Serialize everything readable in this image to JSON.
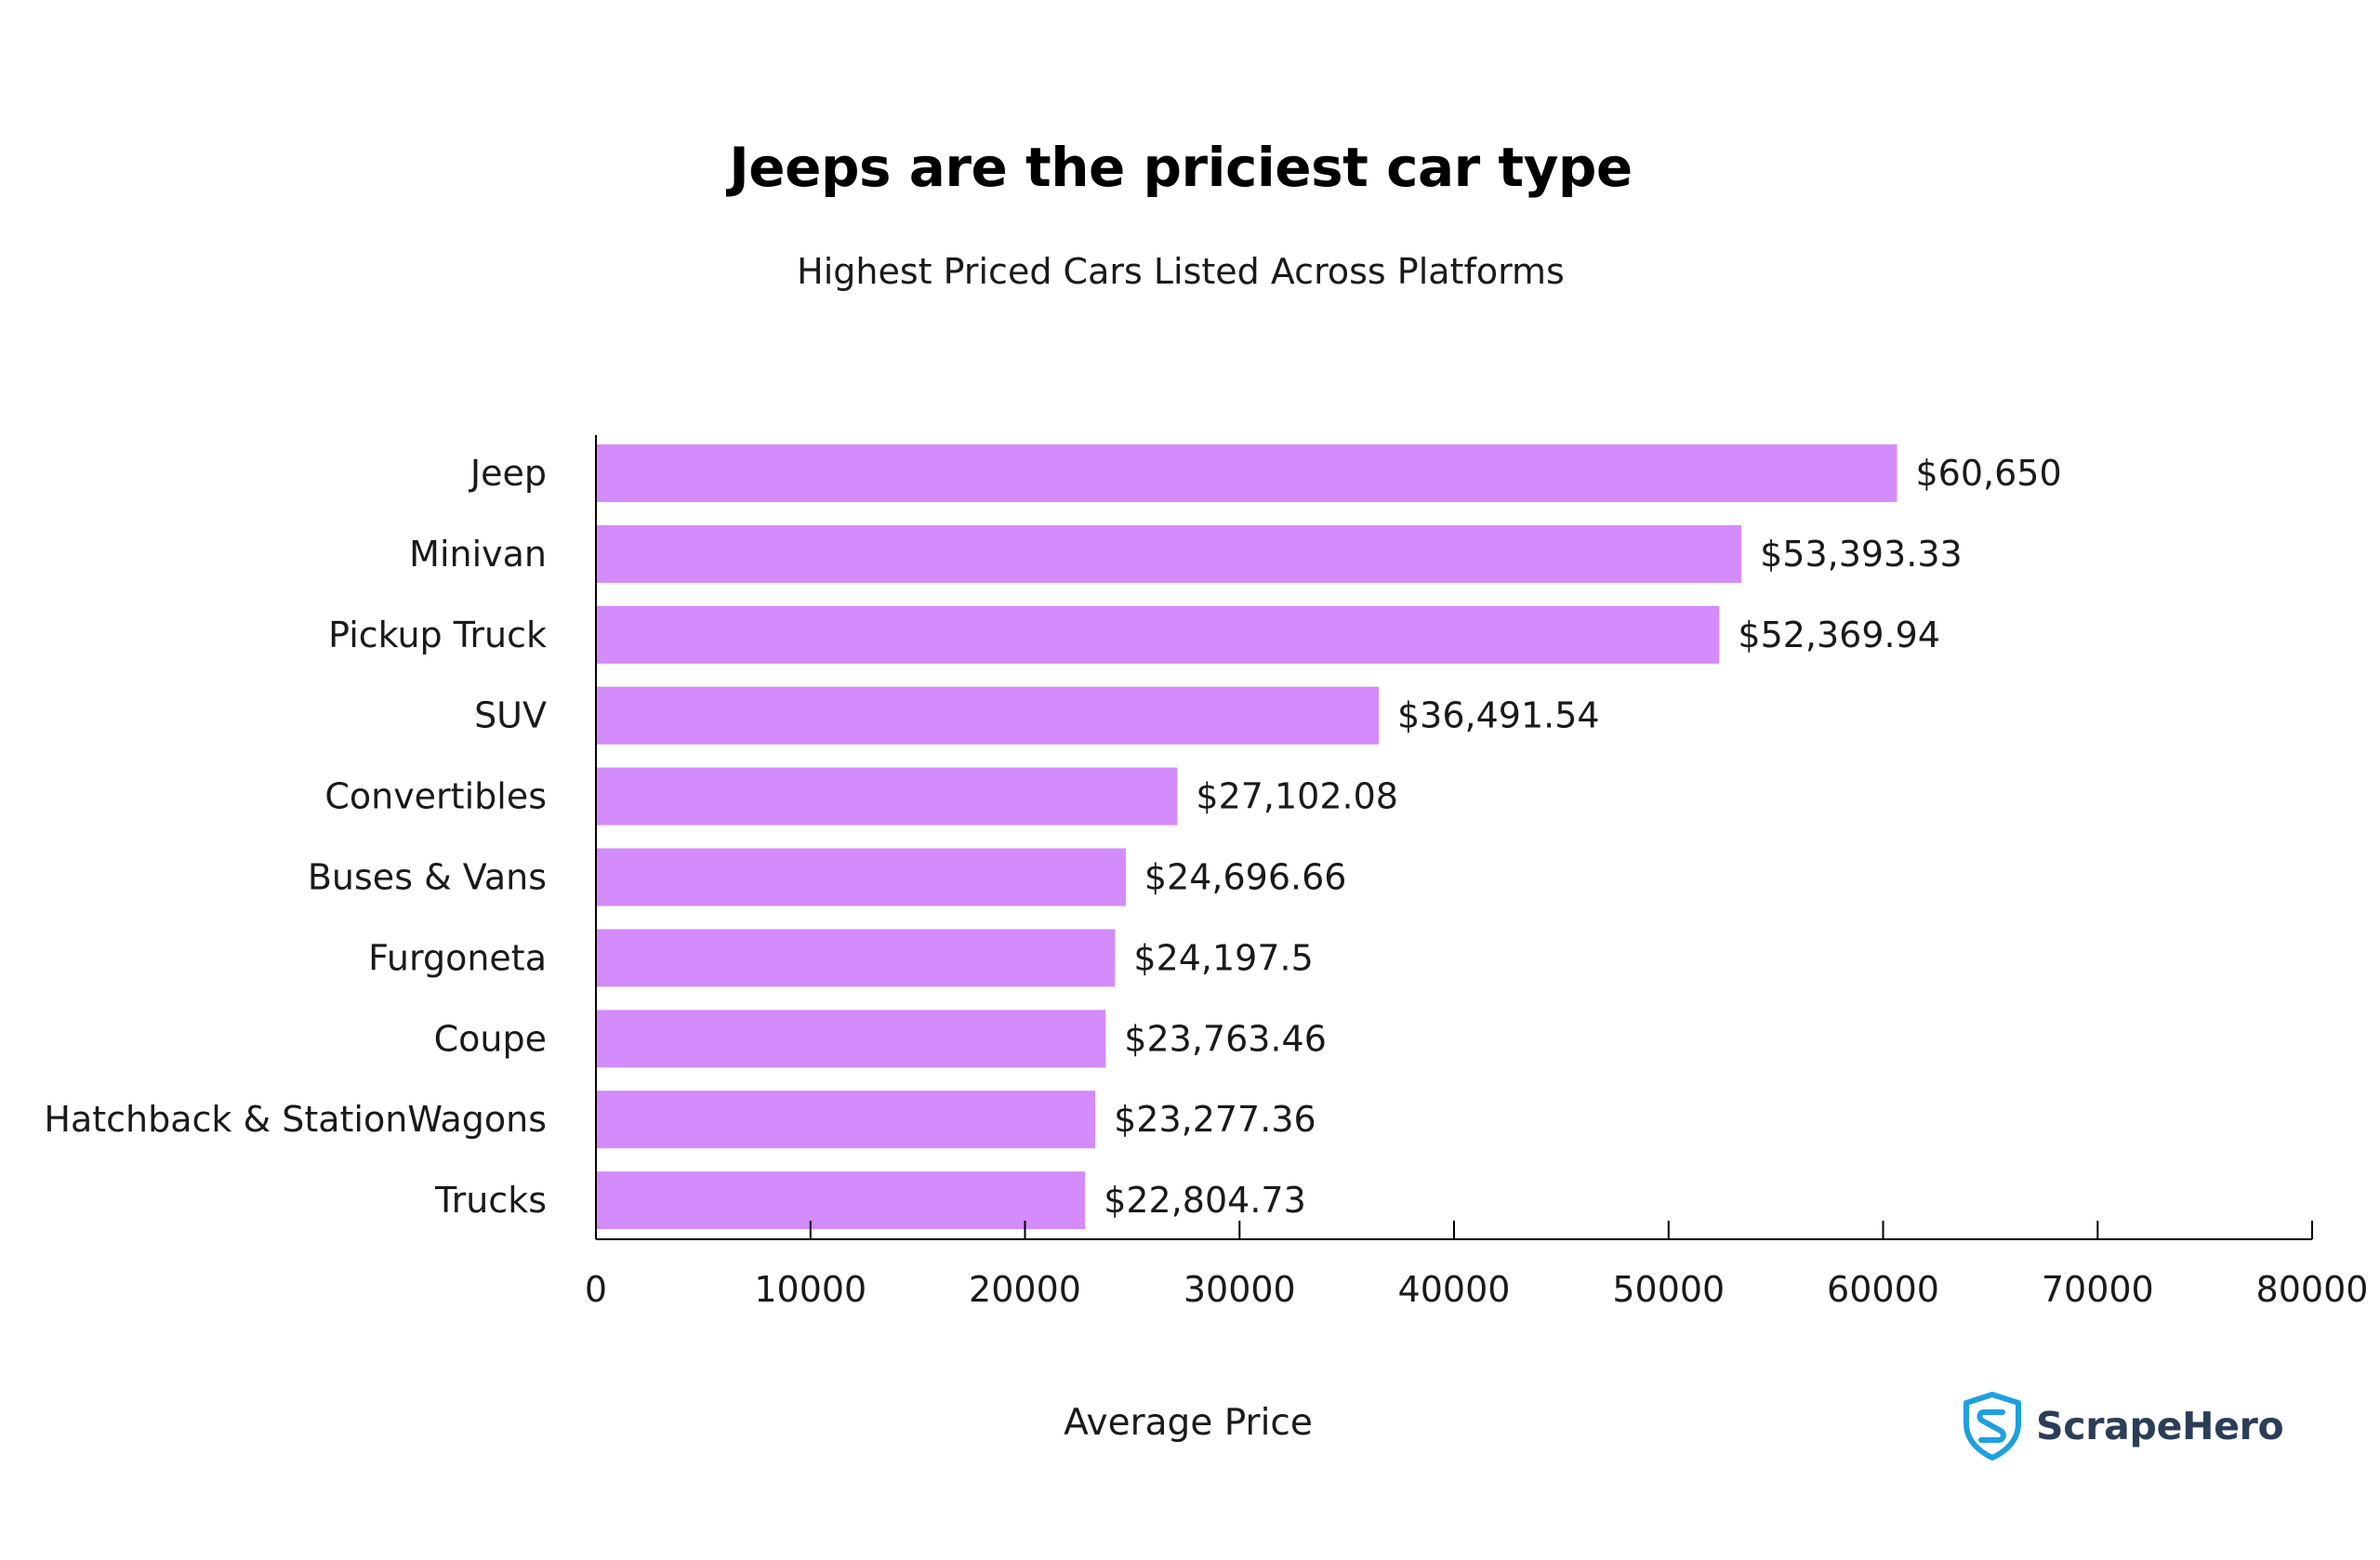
{
  "chart_data": {
    "type": "bar",
    "orientation": "horizontal",
    "title": "Jeeps are the priciest car type",
    "subtitle": "Highest Priced Cars Listed Across Platforms",
    "xlabel": "Average Price",
    "ylabel": "",
    "xlim": [
      0,
      80000
    ],
    "x_ticks": [
      "0",
      "10000",
      "20000",
      "30000",
      "40000",
      "50000",
      "60000",
      "70000",
      "80000"
    ],
    "categories": [
      "Jeep",
      "Minivan",
      "Pickup Truck",
      "SUV",
      "Convertibles",
      "Buses & Vans",
      "Furgoneta",
      "Coupe",
      "Hatchback & StationWagons",
      "Trucks"
    ],
    "values": [
      60650,
      53393.33,
      52369.94,
      36491.54,
      27102.08,
      24696.66,
      24197.5,
      23763.46,
      23277.36,
      22804.73
    ],
    "data_labels": [
      "$60,650",
      "$53,393.33",
      "$52,369.94",
      "$36,491.54",
      "$27,102.08",
      "$24,696.66",
      "$24,197.5",
      "$23,763.46",
      "$23,277.36",
      "$22,804.73"
    ],
    "grid": false,
    "legend": "none",
    "bar_color": "#d48bfb",
    "axis_color": "#000000"
  },
  "brand": {
    "name": "ScrapeHero",
    "logo_icon": "shield-s-logo-icon",
    "logo_color": "#1ea0e0"
  }
}
